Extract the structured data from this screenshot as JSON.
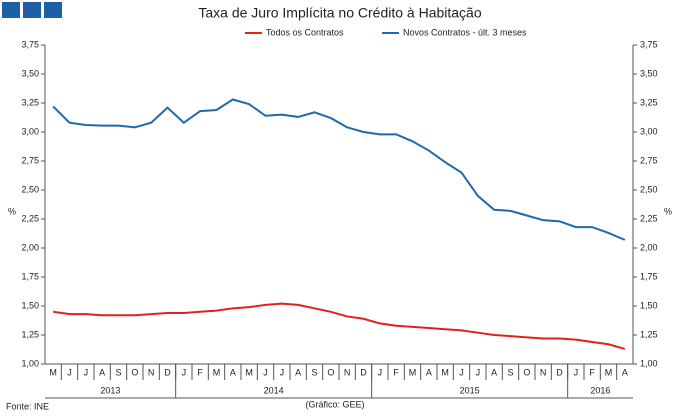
{
  "chart_data": {
    "type": "line",
    "title": "Taxa de Juro Implícita no Crédito à Habitação",
    "ylabel": "%",
    "source": "Fonte: INE",
    "credit": "(Gráfico: GEE)",
    "years": [
      "2013",
      "2014",
      "2015",
      "2016"
    ],
    "categories": [
      "M",
      "J",
      "J",
      "A",
      "S",
      "O",
      "N",
      "D",
      "J",
      "F",
      "M",
      "A",
      "M",
      "J",
      "J",
      "A",
      "S",
      "O",
      "N",
      "D",
      "J",
      "F",
      "M",
      "A",
      "M",
      "J",
      "J",
      "A",
      "S",
      "O",
      "N",
      "D",
      "J",
      "F",
      "M",
      "A"
    ],
    "series": [
      {
        "name": "Todos os Contratos",
        "color": "#e0211d",
        "values": [
          1.45,
          1.43,
          1.43,
          1.42,
          1.42,
          1.42,
          1.43,
          1.44,
          1.44,
          1.45,
          1.46,
          1.48,
          1.49,
          1.51,
          1.52,
          1.51,
          1.48,
          1.45,
          1.41,
          1.39,
          1.35,
          1.33,
          1.32,
          1.31,
          1.3,
          1.29,
          1.27,
          1.25,
          1.24,
          1.23,
          1.22,
          1.22,
          1.21,
          1.19,
          1.17,
          1.13
        ]
      },
      {
        "name": "Novos Contratos - últ. 3 meses",
        "color": "#1f6aad",
        "values": [
          3.22,
          3.08,
          3.06,
          3.055,
          3.055,
          3.04,
          3.08,
          3.21,
          3.08,
          3.18,
          3.19,
          3.28,
          3.24,
          3.14,
          3.15,
          3.13,
          3.17,
          3.12,
          3.04,
          3.0,
          2.98,
          2.98,
          2.92,
          2.84,
          2.74,
          2.65,
          2.45,
          2.33,
          2.32,
          2.28,
          2.24,
          2.23,
          2.18,
          2.18,
          2.13,
          2.07
        ]
      }
    ],
    "ylim": [
      1.0,
      3.75
    ],
    "yticks": [
      {
        "value": 1.0,
        "label": "1,00"
      },
      {
        "value": 1.25,
        "label": "1,25"
      },
      {
        "value": 1.5,
        "label": "1,50"
      },
      {
        "value": 1.75,
        "label": "1,75"
      },
      {
        "value": 2.0,
        "label": "2,00"
      },
      {
        "value": 2.25,
        "label": "2,25"
      },
      {
        "value": 2.5,
        "label": "2,50"
      },
      {
        "value": 2.75,
        "label": "2,75"
      },
      {
        "value": 3.0,
        "label": "3,00"
      },
      {
        "value": 3.25,
        "label": "3,25"
      },
      {
        "value": 3.5,
        "label": "3,50"
      },
      {
        "value": 3.75,
        "label": "3,75"
      }
    ]
  }
}
